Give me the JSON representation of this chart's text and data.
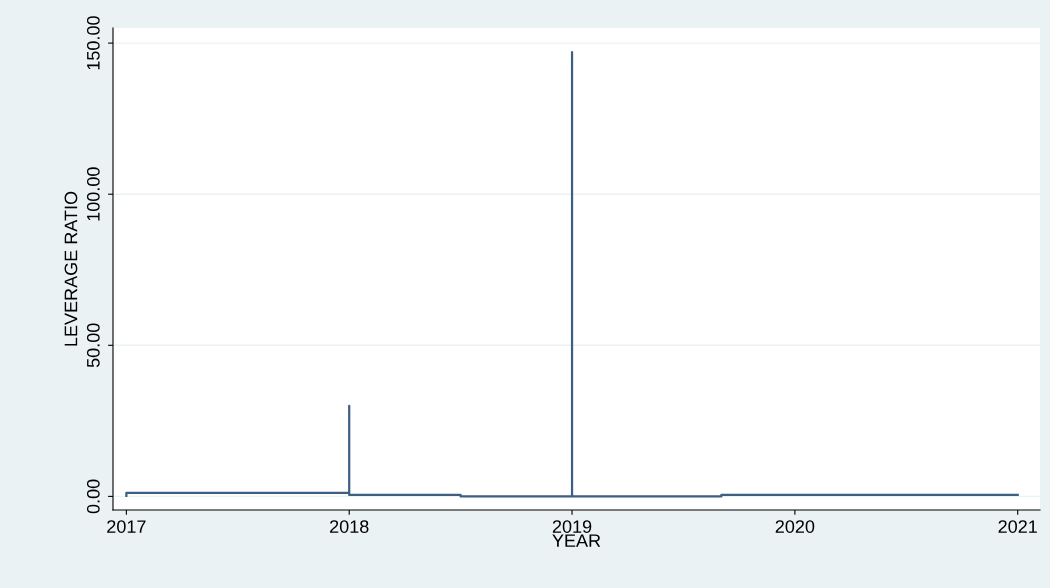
{
  "chart_data": {
    "type": "line",
    "xlabel": "YEAR",
    "ylabel": "LEVERAGE RATIO",
    "x": [
      2017,
      2017,
      2018,
      2018,
      2018,
      2018.5,
      2018.5,
      2019,
      2019,
      2019,
      2019.67,
      2019.67,
      2021
    ],
    "series": [
      {
        "color": "#3d5f82",
        "values": [
          0.2,
          1.2,
          1.2,
          30,
          0.5,
          0.5,
          0,
          0,
          147,
          0,
          0,
          0.5,
          0.5
        ]
      }
    ],
    "xlim": [
      2016.94,
      2021.1
    ],
    "xticks": [
      2017,
      2018,
      2019,
      2020,
      2021
    ],
    "ylim": [
      -4.5,
      155
    ],
    "yticks": [
      {
        "value": 0,
        "label": "0.00"
      },
      {
        "value": 50,
        "label": "50.00"
      },
      {
        "value": 100,
        "label": "100.00"
      },
      {
        "value": 150,
        "label": "150.00"
      }
    ],
    "grid": "y",
    "legend": false
  }
}
